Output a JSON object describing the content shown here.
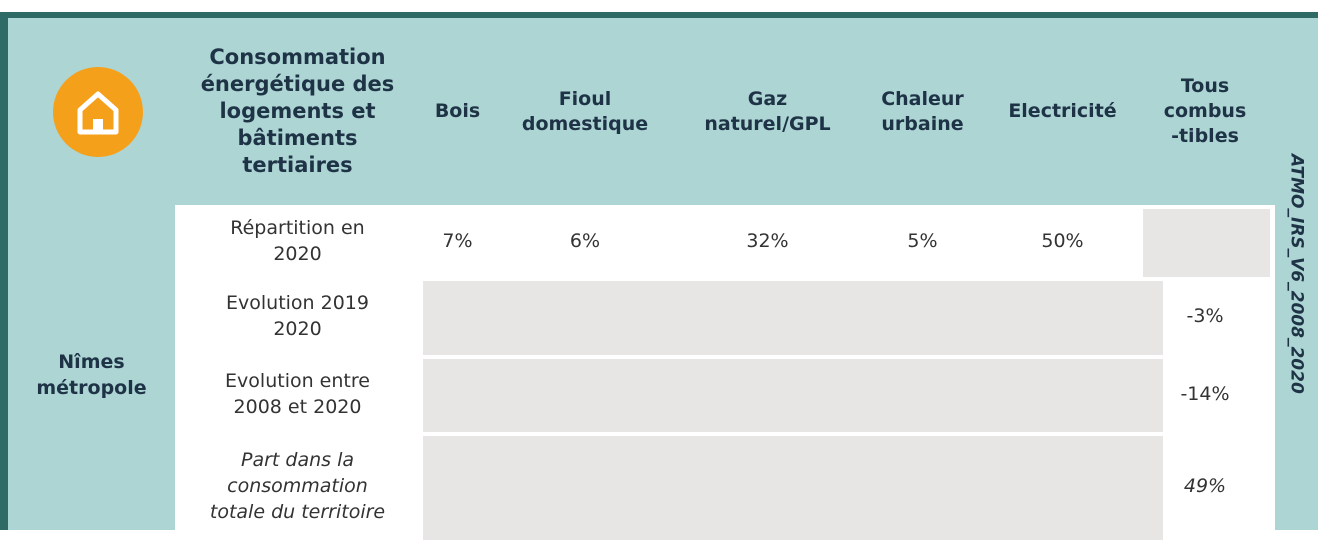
{
  "header": {
    "title": "Consommation\nénergétique des\nlogements et\nbâtiments\ntertiaires",
    "columns": [
      "Bois",
      "Fioul\ndomestique",
      "Gaz\nnaturel/GPL",
      "Chaleur\nurbaine",
      "Electricité",
      "Tous\ncombus\n-tibles"
    ]
  },
  "side_label": "ATMO_IRS_V6_2008_2020",
  "table": {
    "group": "Nîmes\nmétropole",
    "rows": [
      {
        "label": "Répartition en\n2020",
        "values": [
          "7%",
          "6%",
          "32%",
          "5%",
          "50%"
        ]
      },
      {
        "label": "Evolution 2019\n2020",
        "total": "-3%"
      },
      {
        "label": "Evolution entre\n2008 et 2020",
        "total": "-14%"
      },
      {
        "label": "Part dans la\nconsommation\ntotale du territoire",
        "total": "49%",
        "italic": true
      }
    ]
  }
}
